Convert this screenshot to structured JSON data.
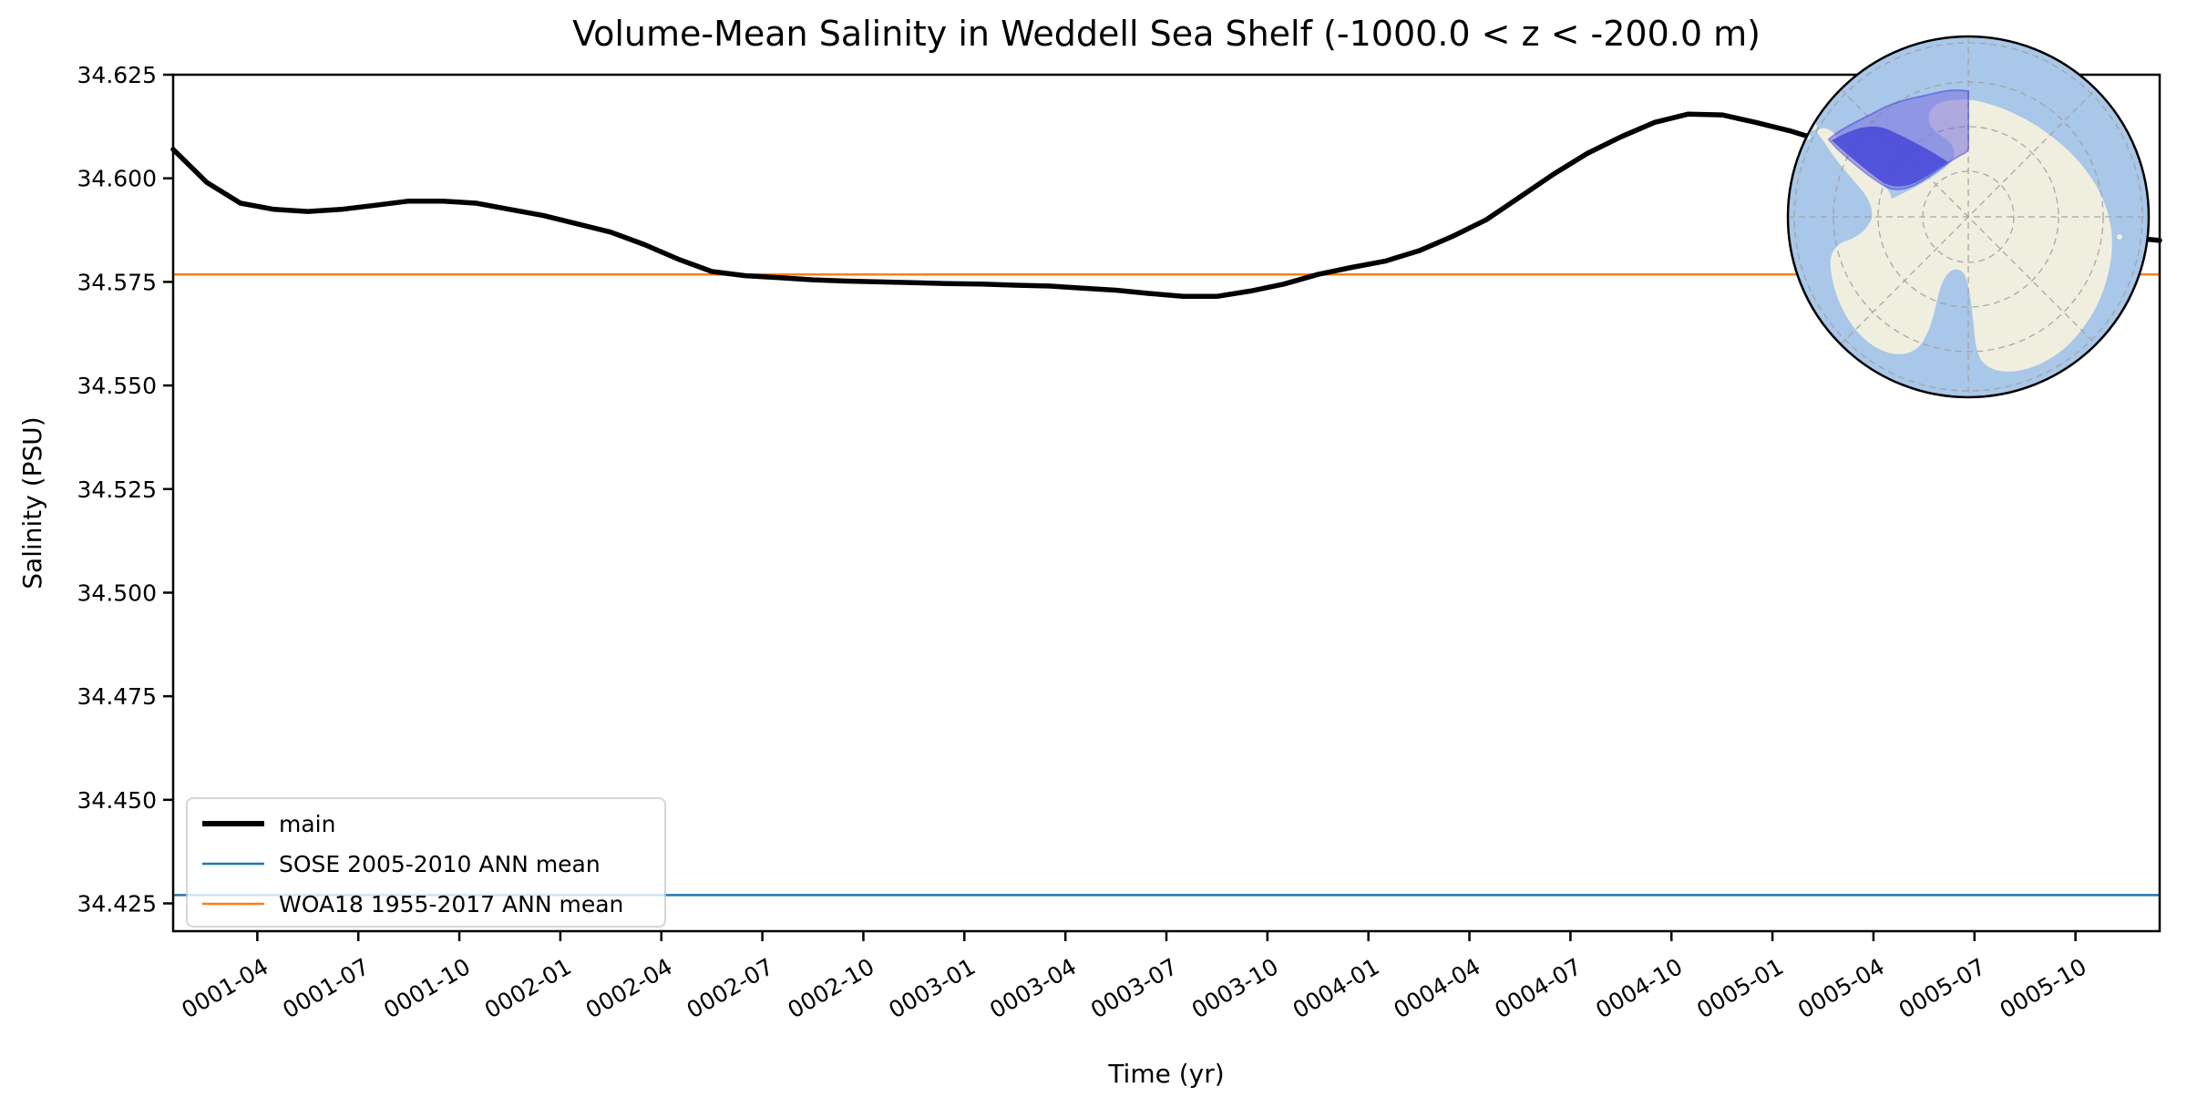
{
  "title": "Volume-Mean Salinity in Weddell Sea Shelf (-1000.0 < z < -200.0 m)",
  "chart_data": {
    "type": "line",
    "title": "Volume-Mean Salinity in Weddell Sea Shelf (-1000.0 < z < -200.0 m)",
    "xlabel": "Time (yr)",
    "ylabel": "Salinity (PSU)",
    "grid": false,
    "legend_position": "lower left",
    "ylim": [
      34.4183,
      34.625
    ],
    "yticks": [
      34.425,
      34.45,
      34.475,
      34.5,
      34.525,
      34.55,
      34.575,
      34.6,
      34.625
    ],
    "xtick_labels": [
      "0001-04",
      "0001-07",
      "0001-10",
      "0002-01",
      "0002-04",
      "0002-07",
      "0002-10",
      "0003-01",
      "0003-04",
      "0003-07",
      "0003-10",
      "0004-01",
      "0004-04",
      "0004-07",
      "0004-10",
      "0005-01",
      "0005-04",
      "0005-07",
      "0005-10"
    ],
    "x": [
      "0001-01",
      "0001-02",
      "0001-03",
      "0001-04",
      "0001-05",
      "0001-06",
      "0001-07",
      "0001-08",
      "0001-09",
      "0001-10",
      "0001-11",
      "0001-12",
      "0002-01",
      "0002-02",
      "0002-03",
      "0002-04",
      "0002-05",
      "0002-06",
      "0002-07",
      "0002-08",
      "0002-09",
      "0002-10",
      "0002-11",
      "0002-12",
      "0003-01",
      "0003-02",
      "0003-03",
      "0003-04",
      "0003-05",
      "0003-06",
      "0003-07",
      "0003-08",
      "0003-09",
      "0003-10",
      "0003-11",
      "0003-12",
      "0004-01",
      "0004-02",
      "0004-03",
      "0004-04",
      "0004-05",
      "0004-06",
      "0004-07",
      "0004-08",
      "0004-09",
      "0004-10",
      "0004-11",
      "0004-12",
      "0005-01",
      "0005-02",
      "0005-03",
      "0005-04",
      "0005-05",
      "0005-06",
      "0005-07",
      "0005-08",
      "0005-09",
      "0005-10",
      "0005-11",
      "0005-12"
    ],
    "series": [
      {
        "name": "main",
        "color": "#000000",
        "linewidth": 5.5,
        "values": [
          34.607,
          34.599,
          34.594,
          34.5925,
          34.592,
          34.5925,
          34.5935,
          34.5945,
          34.5945,
          34.594,
          34.5925,
          34.591,
          34.589,
          34.587,
          34.584,
          34.5805,
          34.5775,
          34.5765,
          34.576,
          34.5755,
          34.5752,
          34.575,
          34.5748,
          34.5746,
          34.5745,
          34.5742,
          34.574,
          34.5735,
          34.573,
          34.5722,
          34.5715,
          34.5715,
          34.5728,
          34.5745,
          34.5768,
          34.5785,
          34.58,
          34.5825,
          34.586,
          34.59,
          34.5955,
          34.601,
          34.606,
          34.61,
          34.6135,
          34.6155,
          34.6153,
          34.6135,
          34.6115,
          34.609,
          34.6062,
          34.6035,
          34.6005,
          34.5975,
          34.5945,
          34.5915,
          34.589,
          34.587,
          34.5858,
          34.585
        ]
      }
    ],
    "ref_lines": [
      {
        "name": "SOSE 2005-2010 ANN mean",
        "value": 34.427,
        "color": "#1f77b4",
        "linewidth": 2.5
      },
      {
        "name": "WOA18 1955-2017 ANN mean",
        "value": 34.5768,
        "color": "#ff7f0e",
        "linewidth": 2.5
      }
    ]
  },
  "inset_map": {
    "ocean_color": "#a9c7e8",
    "land_color": "#f0efdf",
    "graticule_color": "#a0a0a0",
    "region_fill": "#7a6fe0",
    "region_deep_fill": "#4748d8",
    "region_border": "#3a3ad0",
    "outline_color": "#000000"
  },
  "colors": {
    "background": "#ffffff",
    "axes_frame": "#000000",
    "legend_border": "#cccccc"
  }
}
